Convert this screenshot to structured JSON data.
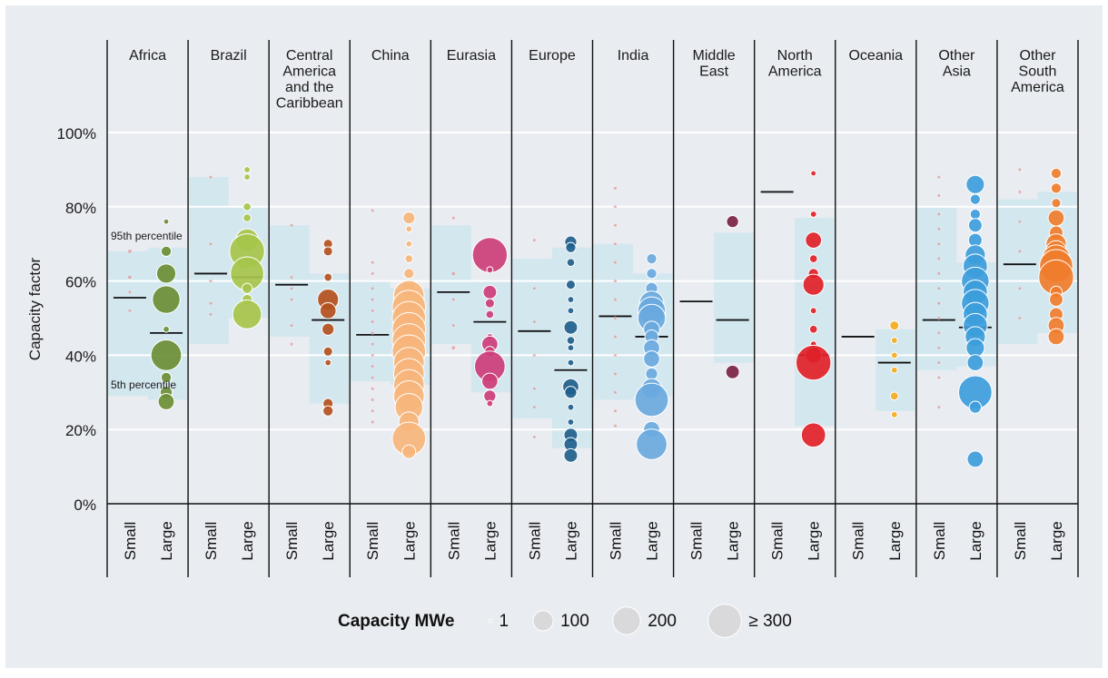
{
  "chart_data": {
    "type": "scatter",
    "title": "",
    "ylabel": "Capacity factor",
    "ylim": [
      0,
      100
    ],
    "yticks": [
      "0%",
      "20%",
      "40%",
      "60%",
      "80%",
      "100%"
    ],
    "size_groups": [
      "Small",
      "Large"
    ],
    "annotations": {
      "p95": "95th percentile",
      "p5": "5th percentile"
    },
    "legend": {
      "title": "Capacity MWe",
      "items": [
        {
          "label": "1",
          "mwe": 1
        },
        {
          "label": "100",
          "mwe": 100
        },
        {
          "label": "200",
          "mwe": 200
        },
        {
          "label": "≥ 300",
          "mwe": 300
        }
      ]
    },
    "regions": [
      {
        "name": [
          "Africa"
        ],
        "color": "#6b8e35",
        "small": {
          "p5": 29,
          "p95": 68,
          "median": 55.5,
          "points": [
            [
              68,
              5
            ],
            [
              61,
              5
            ],
            [
              57,
              3
            ],
            [
              52,
              3
            ]
          ]
        },
        "large": {
          "p5": 28,
          "p95": 69,
          "median": 46,
          "points": [
            [
              76,
              3
            ],
            [
              68,
              20
            ],
            [
              62,
              90
            ],
            [
              55,
              200
            ],
            [
              47,
              5
            ],
            [
              40,
              250
            ],
            [
              34,
              20
            ],
            [
              30,
              30
            ],
            [
              27.5,
              60
            ]
          ]
        }
      },
      {
        "name": [
          "Brazil"
        ],
        "color": "#a6c44a",
        "small": {
          "p5": 43,
          "p95": 88,
          "median": 62,
          "points": [
            [
              88,
              3
            ],
            [
              70,
              3
            ],
            [
              60,
              3
            ],
            [
              54,
              3
            ],
            [
              51,
              3
            ]
          ]
        },
        "large": {
          "p5": 50,
          "p95": 80,
          "median": 61,
          "points": [
            [
              90,
              5
            ],
            [
              88,
              5
            ],
            [
              80,
              10
            ],
            [
              77,
              10
            ],
            [
              71,
              130
            ],
            [
              68,
              330
            ],
            [
              62,
              300
            ],
            [
              58,
              20
            ],
            [
              55,
              20
            ],
            [
              51,
              220
            ]
          ]
        }
      },
      {
        "name": [
          "Central",
          "America",
          "and the",
          "Caribbean"
        ],
        "color": "#b3501e",
        "small": {
          "p5": 45,
          "p95": 75,
          "median": 59,
          "points": [
            [
              75,
              3
            ],
            [
              61,
              3
            ],
            [
              58,
              3
            ],
            [
              55,
              3
            ],
            [
              48,
              3
            ],
            [
              43,
              3
            ]
          ]
        },
        "large": {
          "p5": 27,
          "p95": 62,
          "median": 49.5,
          "points": [
            [
              70,
              15
            ],
            [
              68,
              15
            ],
            [
              61,
              10
            ],
            [
              55,
              110
            ],
            [
              52,
              60
            ],
            [
              47,
              30
            ],
            [
              41,
              15
            ],
            [
              38,
              5
            ],
            [
              27,
              20
            ],
            [
              25,
              20
            ]
          ]
        }
      },
      {
        "name": [
          "China"
        ],
        "color": "#f6b57c",
        "small": {
          "p5": 33,
          "p95": 60,
          "median": 45.5,
          "points": [
            [
              79,
              3
            ],
            [
              65,
              3
            ],
            [
              62,
              3
            ],
            [
              58,
              3
            ],
            [
              55,
              3
            ],
            [
              52,
              3
            ],
            [
              49,
              3
            ],
            [
              46,
              3
            ],
            [
              43,
              3
            ],
            [
              40,
              3
            ],
            [
              37,
              3
            ],
            [
              34,
              3
            ],
            [
              31,
              3
            ],
            [
              28,
              3
            ],
            [
              25,
              3
            ],
            [
              22,
              3
            ]
          ]
        },
        "large": {
          "p5": 32,
          "p95": 58,
          "median": 46,
          "points": [
            [
              77,
              30
            ],
            [
              74,
              5
            ],
            [
              70,
              5
            ],
            [
              66,
              10
            ],
            [
              62,
              20
            ],
            [
              58,
              40
            ],
            [
              56,
              250
            ],
            [
              53,
              300
            ],
            [
              50,
              300
            ],
            [
              47,
              300
            ],
            [
              44,
              300
            ],
            [
              41,
              300
            ],
            [
              38,
              250
            ],
            [
              35,
              250
            ],
            [
              32,
              250
            ],
            [
              29,
              250
            ],
            [
              26,
              200
            ],
            [
              22,
              100
            ],
            [
              17.5,
              300
            ],
            [
              14,
              40
            ]
          ]
        }
      },
      {
        "name": [
          "Eurasia"
        ],
        "color": "#cc3e78",
        "small": {
          "p5": 43,
          "p95": 75,
          "median": 57,
          "points": [
            [
              77,
              3
            ],
            [
              62,
              5
            ],
            [
              55,
              3
            ],
            [
              48,
              3
            ],
            [
              42,
              5
            ]
          ]
        },
        "large": {
          "p5": 30,
          "p95": 60,
          "median": 49,
          "points": [
            [
              67,
              330
            ],
            [
              63,
              5
            ],
            [
              57,
              40
            ],
            [
              54,
              15
            ],
            [
              51,
              10
            ],
            [
              45,
              5
            ],
            [
              43,
              60
            ],
            [
              41,
              20
            ],
            [
              37,
              250
            ],
            [
              33,
              60
            ],
            [
              29,
              30
            ],
            [
              27,
              5
            ]
          ]
        }
      },
      {
        "name": [
          "Europe"
        ],
        "color": "#1f5f8c",
        "small": {
          "p5": 23,
          "p95": 66,
          "median": 46.5,
          "points": [
            [
              71,
              3
            ],
            [
              58,
              3
            ],
            [
              49,
              3
            ],
            [
              40,
              3
            ],
            [
              31,
              3
            ],
            [
              26,
              3
            ],
            [
              18,
              3
            ]
          ]
        },
        "large": {
          "p5": 15,
          "p95": 69,
          "median": 36,
          "points": [
            [
              70.5,
              30
            ],
            [
              69,
              20
            ],
            [
              65,
              10
            ],
            [
              59,
              15
            ],
            [
              55,
              5
            ],
            [
              52,
              5
            ],
            [
              47.5,
              40
            ],
            [
              44,
              10
            ],
            [
              42,
              5
            ],
            [
              38,
              5
            ],
            [
              31.5,
              60
            ],
            [
              30,
              30
            ],
            [
              26,
              5
            ],
            [
              22,
              5
            ],
            [
              18.5,
              40
            ],
            [
              16,
              40
            ],
            [
              13,
              40
            ]
          ]
        }
      },
      {
        "name": [
          "India"
        ],
        "color": "#6aa9de",
        "small": {
          "p5": 28,
          "p95": 70,
          "median": 50.5,
          "points": [
            [
              85,
              3
            ],
            [
              80,
              3
            ],
            [
              75,
              3
            ],
            [
              70,
              3
            ],
            [
              65,
              3
            ],
            [
              60,
              3
            ],
            [
              55,
              3
            ],
            [
              50,
              3
            ],
            [
              45,
              3
            ],
            [
              40,
              3
            ],
            [
              35,
              3
            ],
            [
              30,
              3
            ],
            [
              25,
              3
            ],
            [
              21,
              3
            ]
          ]
        },
        "large": {
          "p5": 29,
          "p95": 62,
          "median": 45,
          "points": [
            [
              66,
              20
            ],
            [
              62,
              20
            ],
            [
              58,
              30
            ],
            [
              54,
              150
            ],
            [
              52,
              200
            ],
            [
              50,
              200
            ],
            [
              47,
              60
            ],
            [
              45,
              40
            ],
            [
              42,
              60
            ],
            [
              39,
              60
            ],
            [
              35,
              30
            ],
            [
              31,
              100
            ],
            [
              28,
              300
            ],
            [
              20,
              60
            ],
            [
              16,
              250
            ]
          ]
        }
      },
      {
        "name": [
          "Middle",
          "East"
        ],
        "color": "#7a2245",
        "small": {
          "p5": 55,
          "p95": 55,
          "median": 54.5,
          "points": []
        },
        "large": {
          "p5": 38,
          "p95": 73,
          "median": 49.5,
          "points": [
            [
              76,
              30
            ],
            [
              35.5,
              40
            ]
          ]
        }
      },
      {
        "name": [
          "North",
          "America"
        ],
        "color": "#e12128",
        "small": {
          "p5": 84,
          "p95": 84,
          "median": 84,
          "points": []
        },
        "large": {
          "p5": 21,
          "p95": 77,
          "median": 40,
          "points": [
            [
              89,
              3
            ],
            [
              78,
              5
            ],
            [
              71,
              60
            ],
            [
              66,
              10
            ],
            [
              62,
              20
            ],
            [
              59,
              110
            ],
            [
              52,
              5
            ],
            [
              47,
              10
            ],
            [
              43,
              5
            ],
            [
              40,
              60
            ],
            [
              38,
              330
            ],
            [
              18.5,
              150
            ]
          ]
        }
      },
      {
        "name": [
          "Oceania"
        ],
        "color": "#f4ad1f",
        "small": {
          "p5": 45,
          "p95": 45,
          "median": 45,
          "points": []
        },
        "large": {
          "p5": 25,
          "p95": 47,
          "median": 38,
          "points": [
            [
              48,
              15
            ],
            [
              44,
              5
            ],
            [
              40,
              5
            ],
            [
              36,
              5
            ],
            [
              29,
              10
            ],
            [
              24,
              5
            ]
          ]
        }
      },
      {
        "name": [
          "Other",
          "Asia"
        ],
        "color": "#3d9ddb",
        "small": {
          "p5": 36,
          "p95": 80,
          "median": 49.5,
          "points": [
            [
              88,
              3
            ],
            [
              83,
              3
            ],
            [
              78,
              3
            ],
            [
              74,
              3
            ],
            [
              70,
              3
            ],
            [
              66,
              3
            ],
            [
              62,
              3
            ],
            [
              58,
              3
            ],
            [
              54,
              3
            ],
            [
              50,
              3
            ],
            [
              46,
              3
            ],
            [
              42,
              3
            ],
            [
              38,
              3
            ],
            [
              34,
              3
            ],
            [
              26,
              3
            ]
          ]
        },
        "large": {
          "p5": 37,
          "p95": 65,
          "median": 47.5,
          "points": [
            [
              86,
              80
            ],
            [
              82,
              20
            ],
            [
              78,
              20
            ],
            [
              75,
              40
            ],
            [
              71,
              40
            ],
            [
              67,
              100
            ],
            [
              64,
              150
            ],
            [
              60,
              200
            ],
            [
              57,
              150
            ],
            [
              54,
              200
            ],
            [
              51,
              150
            ],
            [
              48,
              150
            ],
            [
              45,
              100
            ],
            [
              42,
              80
            ],
            [
              38,
              60
            ],
            [
              30,
              300
            ],
            [
              26,
              30
            ],
            [
              12,
              60
            ]
          ]
        }
      },
      {
        "name": [
          "Other",
          "South",
          "America"
        ],
        "color": "#ef7d2d",
        "small": {
          "p5": 43,
          "p95": 82,
          "median": 64.5,
          "points": [
            [
              90,
              3
            ],
            [
              84,
              3
            ],
            [
              76,
              3
            ],
            [
              68,
              3
            ],
            [
              58,
              3
            ],
            [
              50,
              3
            ]
          ]
        },
        "large": {
          "p5": 46,
          "p95": 84,
          "median": 62.5,
          "points": [
            [
              89,
              20
            ],
            [
              85,
              20
            ],
            [
              81,
              15
            ],
            [
              77,
              60
            ],
            [
              73,
              40
            ],
            [
              70,
              100
            ],
            [
              68,
              110
            ],
            [
              66,
              200
            ],
            [
              64,
              300
            ],
            [
              61,
              330
            ],
            [
              57,
              30
            ],
            [
              55,
              40
            ],
            [
              51,
              40
            ],
            [
              48,
              60
            ],
            [
              45,
              60
            ]
          ]
        }
      }
    ]
  }
}
